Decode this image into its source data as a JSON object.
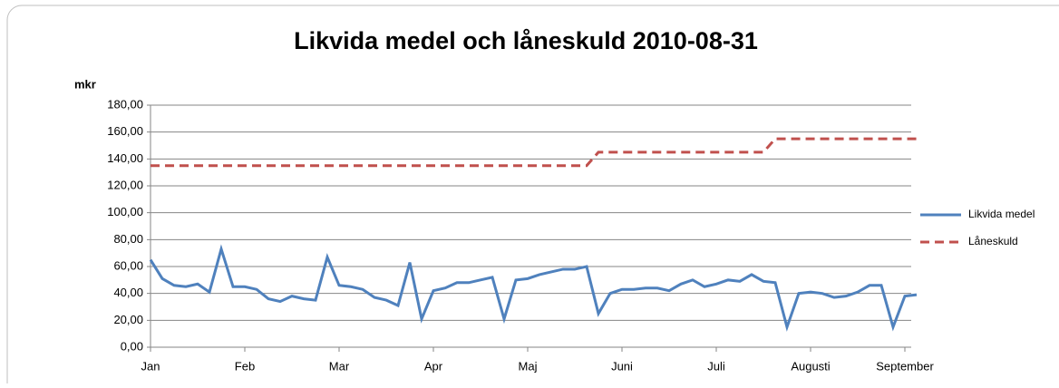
{
  "chart_data": {
    "type": "line",
    "title": "Likvida medel och låneskuld  2010-08-31",
    "y_label": "mkr",
    "categories": [
      "Jan",
      null,
      null,
      null,
      null,
      null,
      null,
      null,
      "Feb",
      null,
      null,
      null,
      null,
      null,
      null,
      null,
      "Mar",
      null,
      null,
      null,
      null,
      null,
      null,
      null,
      "Apr",
      null,
      null,
      null,
      null,
      null,
      null,
      null,
      "Maj",
      null,
      null,
      null,
      null,
      null,
      null,
      null,
      "Juni",
      null,
      null,
      null,
      null,
      null,
      null,
      null,
      "Juli",
      null,
      null,
      null,
      null,
      null,
      null,
      null,
      "Augusti",
      null,
      null,
      null,
      null,
      null,
      null,
      null,
      "September",
      null
    ],
    "series": [
      {
        "name": "Likvida medel",
        "color": "#4f81bd",
        "dash": false,
        "values": [
          65,
          51,
          46,
          45,
          47,
          41,
          73,
          45,
          45,
          43,
          36,
          34,
          38,
          36,
          35,
          67,
          46,
          45,
          43,
          37,
          35,
          31,
          63,
          21,
          42,
          44,
          48,
          48,
          50,
          52,
          21,
          50,
          51,
          54,
          56,
          58,
          58,
          60,
          25,
          40,
          43,
          43,
          44,
          44,
          42,
          47,
          50,
          45,
          47,
          50,
          49,
          54,
          49,
          48,
          15,
          40,
          41,
          40,
          37,
          38,
          41,
          46,
          46,
          15,
          38,
          39
        ]
      },
      {
        "name": "Låneskuld",
        "color": "#c0504d",
        "dash": true,
        "values": [
          135,
          135,
          135,
          135,
          135,
          135,
          135,
          135,
          135,
          135,
          135,
          135,
          135,
          135,
          135,
          135,
          135,
          135,
          135,
          135,
          135,
          135,
          135,
          135,
          135,
          135,
          135,
          135,
          135,
          135,
          135,
          135,
          135,
          135,
          135,
          135,
          135,
          135,
          145,
          145,
          145,
          145,
          145,
          145,
          145,
          145,
          145,
          145,
          145,
          145,
          145,
          145,
          145,
          155,
          155,
          155,
          155,
          155,
          155,
          155,
          155,
          155,
          155,
          155,
          155,
          155
        ]
      }
    ],
    "ylim": [
      0,
      180
    ],
    "yticks": [
      {
        "value": 0,
        "label": "0,00"
      },
      {
        "value": 20,
        "label": "20,00"
      },
      {
        "value": 40,
        "label": "40,00"
      },
      {
        "value": 60,
        "label": "60,00"
      },
      {
        "value": 80,
        "label": "80,00"
      },
      {
        "value": 100,
        "label": "100,00"
      },
      {
        "value": 120,
        "label": "120,00"
      },
      {
        "value": 140,
        "label": "140,00"
      },
      {
        "value": 160,
        "label": "160,00"
      },
      {
        "value": 180,
        "label": "180,00"
      }
    ],
    "grid": true,
    "legend": "right"
  }
}
